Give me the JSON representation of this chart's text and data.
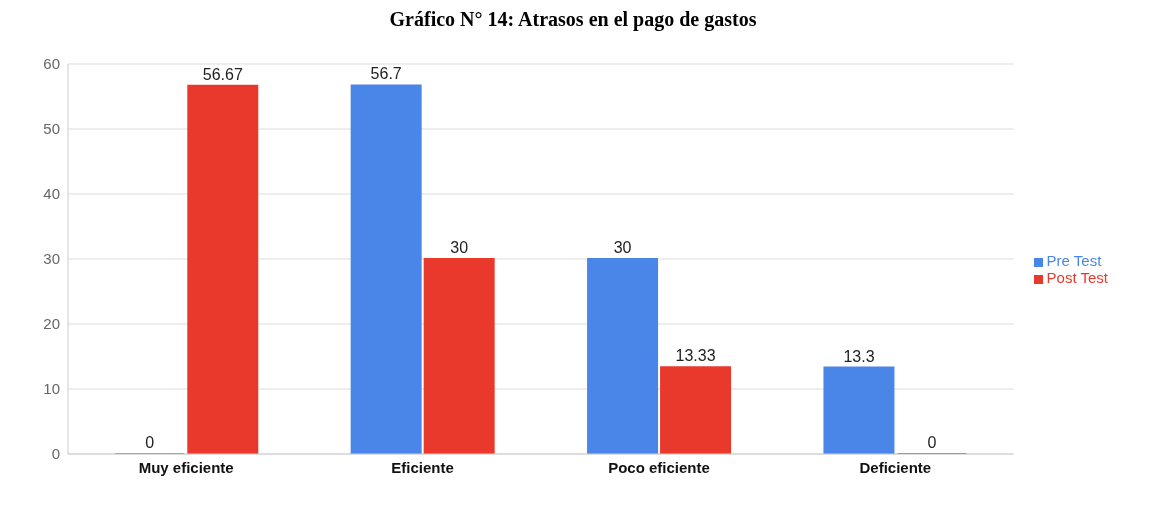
{
  "chart_data": {
    "type": "bar",
    "title": "Gráfico N° 14: Atrasos en el pago de gastos",
    "categories": [
      "Muy eficiente",
      "Eficiente",
      "Poco eficiente",
      "Deficiente"
    ],
    "series": [
      {
        "name": "Pre Test",
        "color": "#4a86e8",
        "values": [
          0,
          56.7,
          30,
          13.3
        ]
      },
      {
        "name": "Post Test",
        "color": "#e8392c",
        "values": [
          56.67,
          30,
          13.33,
          0
        ]
      }
    ],
    "ylim": [
      0,
      60
    ],
    "yticks": [
      0,
      10,
      20,
      30,
      40,
      50,
      60
    ],
    "grid": "y",
    "legend": "right",
    "data_labels": true
  }
}
